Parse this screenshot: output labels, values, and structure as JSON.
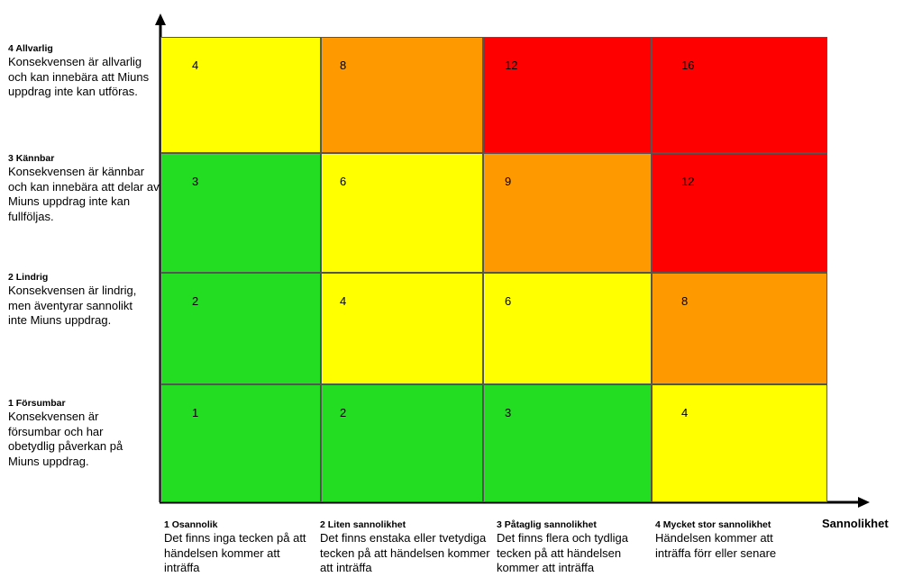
{
  "colors": {
    "green": "#22dd22",
    "yellow": "#ffff00",
    "orange": "#ff9900",
    "red": "#ff0000"
  },
  "matrix": {
    "rows": [
      [
        "yellow",
        "orange",
        "red",
        "red"
      ],
      [
        "green",
        "yellow",
        "orange",
        "red"
      ],
      [
        "green",
        "yellow",
        "yellow",
        "orange"
      ],
      [
        "green",
        "green",
        "green",
        "yellow"
      ]
    ],
    "values": [
      [
        "4",
        "8",
        "12",
        "16"
      ],
      [
        "3",
        "6",
        "9",
        "12"
      ],
      [
        "2",
        "4",
        "6",
        "8"
      ],
      [
        "1",
        "2",
        "3",
        "4"
      ]
    ]
  },
  "consequence_levels": [
    {
      "title": "4 Allvarlig",
      "desc": [
        "Konsekvensen är allvarlig",
        "och kan innebära att Miuns",
        "uppdrag inte kan utföras."
      ]
    },
    {
      "title": "3 Kännbar",
      "desc": [
        "Konsekvensen är kännbar",
        "och kan innebära att delar av",
        "Miuns uppdrag inte kan",
        "fullföljas."
      ]
    },
    {
      "title": "2 Lindrig",
      "desc": [
        "Konsekvensen är lindrig,",
        "men äventyrar sannolikt",
        "inte Miuns uppdrag."
      ]
    },
    {
      "title": "1 Försumbar",
      "desc": [
        "Konsekvensen är",
        "försumbar och har",
        "obetydlig påverkan på",
        "Miuns uppdrag."
      ]
    }
  ],
  "likelihood_levels": [
    {
      "title": "1 Osannolik",
      "desc": [
        "Det finns inga tecken på att",
        "händelsen kommer att",
        "inträffa"
      ]
    },
    {
      "title": "2 Liten sannolikhet",
      "desc": [
        "Det finns enstaka eller tvetydiga",
        "tecken på att händelsen kommer",
        "att inträffa"
      ]
    },
    {
      "title": "3 Påtaglig sannolikhet",
      "desc": [
        "Det finns flera och tydliga",
        "tecken på att händelsen",
        "kommer att inträffa"
      ]
    },
    {
      "title": "4 Mycket stor sannolikhet",
      "desc": [
        "Händelsen kommer att",
        "inträffa förr eller senare"
      ]
    }
  ],
  "x_axis_title": "Sannolikhet"
}
